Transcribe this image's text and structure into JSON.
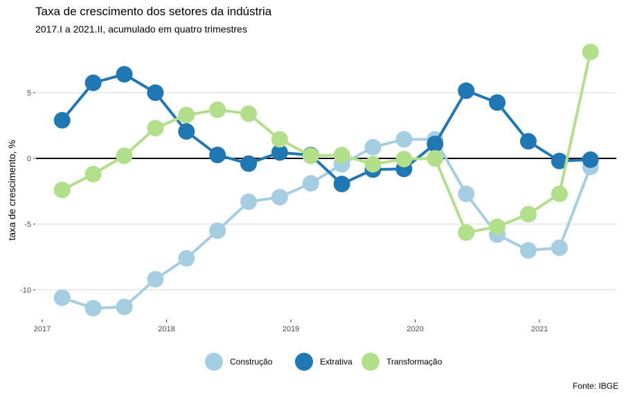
{
  "chart_data": {
    "type": "line",
    "title": "Taxa de crescimento dos setores da indústria",
    "subtitle": "2017.I a 2021.II, acumulado em quatro trimestres",
    "xlabel": "",
    "ylabel": "taxa de crescimento, %",
    "caption": "Fonte: IBGE",
    "x_ticks": [
      "2017",
      "2018",
      "2019",
      "2020",
      "2021"
    ],
    "x_tick_values": [
      2017,
      2018,
      2019,
      2020,
      2021
    ],
    "y_ticks": [
      "-10",
      "-5",
      "0",
      "5"
    ],
    "y_tick_values": [
      -10,
      -5,
      0,
      5
    ],
    "xlim": [
      2017,
      2021.6
    ],
    "ylim": [
      -12.9,
      8.6
    ],
    "grid": true,
    "zero_line": true,
    "legend_position": "bottom",
    "x": [
      2017.16,
      2017.41,
      2017.66,
      2017.91,
      2018.16,
      2018.41,
      2018.66,
      2018.91,
      2019.16,
      2019.41,
      2019.66,
      2019.91,
      2020.16,
      2020.41,
      2020.66,
      2020.91,
      2021.16,
      2021.41
    ],
    "periods": [
      "2017.I",
      "2017.II",
      "2017.III",
      "2017.IV",
      "2018.I",
      "2018.II",
      "2018.III",
      "2018.IV",
      "2019.I",
      "2019.II",
      "2019.III",
      "2019.IV",
      "2020.I",
      "2020.II",
      "2020.III",
      "2020.IV",
      "2021.I",
      "2021.II"
    ],
    "series": [
      {
        "name": "Construção",
        "color": "#a6cee3",
        "values": [
          -10.6,
          -11.4,
          -11.3,
          -9.2,
          -7.6,
          -5.5,
          -3.3,
          -2.95,
          -1.9,
          -0.45,
          0.85,
          1.45,
          1.45,
          -2.7,
          -5.8,
          -7.0,
          -6.8,
          -0.65
        ]
      },
      {
        "name": "Extrativa",
        "color": "#1f78b4",
        "values": [
          2.9,
          5.75,
          6.4,
          5.0,
          2.05,
          0.26,
          -0.4,
          0.45,
          0.25,
          -1.95,
          -0.85,
          -0.8,
          1.1,
          5.15,
          4.25,
          1.3,
          -0.2,
          -0.1
        ]
      },
      {
        "name": "Transformação",
        "color": "#b2df8a",
        "values": [
          -2.4,
          -1.2,
          0.2,
          2.3,
          3.3,
          3.7,
          3.4,
          1.45,
          0.2,
          0.25,
          -0.45,
          -0.05,
          0.0,
          -5.65,
          -5.2,
          -4.25,
          -2.7,
          8.1
        ]
      }
    ]
  }
}
